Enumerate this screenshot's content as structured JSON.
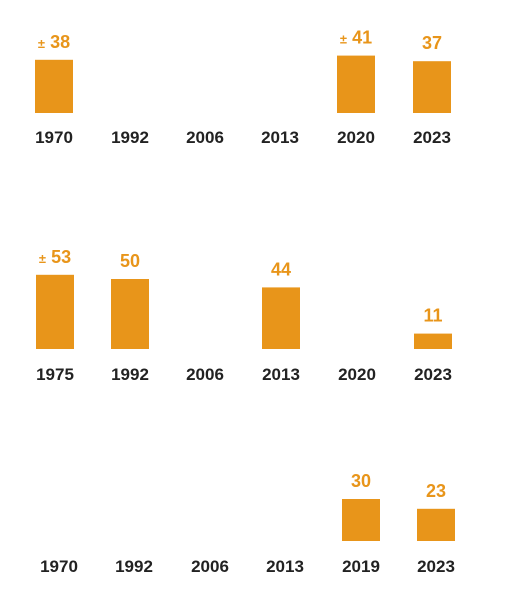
{
  "colors": {
    "bar": "#e8951a",
    "value_text": "#e8951a",
    "tick_text": "#222222",
    "background": "#ffffff"
  },
  "chart_data": [
    {
      "type": "bar",
      "categories": [
        "1970",
        "1992",
        "2006",
        "2013",
        "2020",
        "2023"
      ],
      "values": [
        38,
        null,
        null,
        null,
        41,
        37
      ],
      "value_labels": [
        {
          "prefix": "±",
          "text": "38"
        },
        null,
        null,
        null,
        {
          "prefix": "±",
          "text": "41"
        },
        {
          "prefix": "",
          "text": "37"
        }
      ]
    },
    {
      "type": "bar",
      "categories": [
        "1975",
        "1992",
        "2006",
        "2013",
        "2020",
        "2023"
      ],
      "values": [
        53,
        50,
        null,
        44,
        null,
        11
      ],
      "value_labels": [
        {
          "prefix": "±",
          "text": "53"
        },
        {
          "prefix": "",
          "text": "50"
        },
        null,
        {
          "prefix": "",
          "text": "44"
        },
        null,
        {
          "prefix": "",
          "text": "11"
        }
      ]
    },
    {
      "type": "bar",
      "categories": [
        "1970",
        "1992",
        "2006",
        "2013",
        "2019",
        "2023"
      ],
      "values": [
        null,
        null,
        null,
        null,
        30,
        23
      ],
      "value_labels": [
        null,
        null,
        null,
        null,
        {
          "prefix": "",
          "text": "30"
        },
        {
          "prefix": "",
          "text": "23"
        }
      ]
    }
  ]
}
